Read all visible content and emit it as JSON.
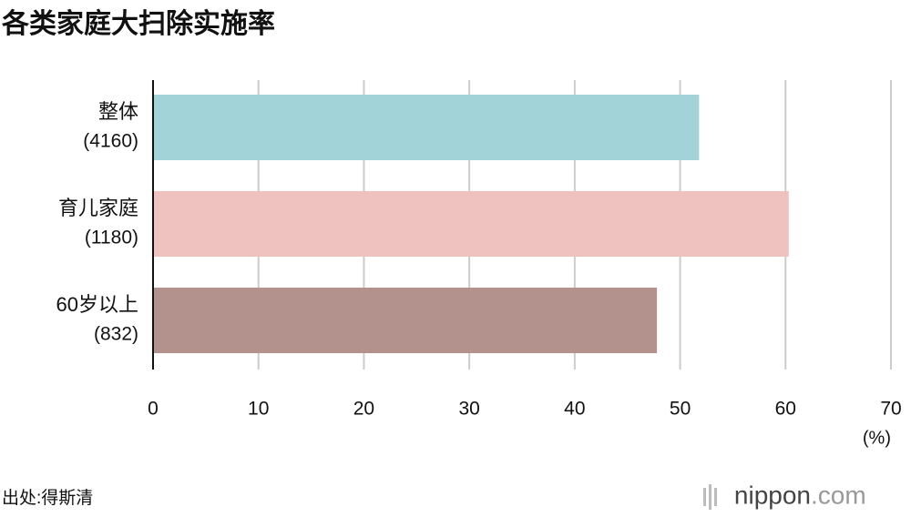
{
  "chart_data": {
    "type": "bar",
    "orientation": "horizontal",
    "title": "各类家庭大扫除实施率",
    "categories": [
      "整体",
      "育儿家庭",
      "60岁以上"
    ],
    "category_notes": [
      "(4160)",
      "(1180)",
      "(832)"
    ],
    "values": [
      51.8,
      60.3,
      47.8
    ],
    "colors": [
      "#a2d3d9",
      "#f0c2bf",
      "#b3928e"
    ],
    "xlim": [
      0,
      70
    ],
    "xticks": [
      0,
      10,
      20,
      30,
      40,
      50,
      60,
      70
    ],
    "grid": true,
    "x_unit": "(%)",
    "source": "出处:得斯清",
    "logo": {
      "name": "nippon",
      "suffix": ".com"
    }
  }
}
